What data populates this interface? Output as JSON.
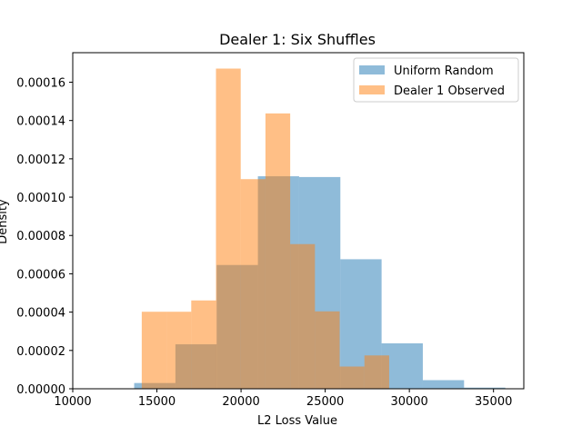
{
  "chart_data": {
    "type": "bar",
    "subtype": "overlaid-histogram",
    "title": "Dealer 1: Six Shuffles",
    "xlabel": "L2 Loss Value",
    "ylabel": "Density",
    "xlim": [
      10000,
      36800
    ],
    "ylim": [
      0,
      0.0001754
    ],
    "x_ticks": [
      10000,
      15000,
      20000,
      25000,
      30000,
      35000
    ],
    "x_tick_labels": [
      "10000",
      "15000",
      "20000",
      "25000",
      "30000",
      "35000"
    ],
    "y_ticks": [
      0,
      2e-05,
      4e-05,
      6e-05,
      8e-05,
      0.0001,
      0.00012,
      0.00014,
      0.00016
    ],
    "y_tick_labels": [
      "0.00000",
      "0.00002",
      "0.00004",
      "0.00006",
      "0.00008",
      "0.00010",
      "0.00012",
      "0.00014",
      "0.00016"
    ],
    "legend_position": "top-right",
    "grid": false,
    "series": [
      {
        "name": "Uniform Random",
        "color": "#1f77b4",
        "alpha": 0.5,
        "bins": [
          {
            "x0": 13650,
            "x1": 16100,
            "value": 3e-06
          },
          {
            "x0": 16100,
            "x1": 18550,
            "value": 2.32e-05
          },
          {
            "x0": 18550,
            "x1": 21000,
            "value": 6.46e-05
          },
          {
            "x0": 21000,
            "x1": 23450,
            "value": 0.0001109
          },
          {
            "x0": 23450,
            "x1": 25900,
            "value": 0.0001105
          },
          {
            "x0": 25900,
            "x1": 28350,
            "value": 6.76e-05
          },
          {
            "x0": 28350,
            "x1": 30800,
            "value": 2.37e-05
          },
          {
            "x0": 30800,
            "x1": 33250,
            "value": 4.5e-06
          },
          {
            "x0": 33250,
            "x1": 35700,
            "value": 6e-07
          }
        ]
      },
      {
        "name": "Dealer 1 Observed",
        "color": "#ff7f0e",
        "alpha": 0.5,
        "bins": [
          {
            "x0": 14100,
            "x1": 15570,
            "value": 4.02e-05
          },
          {
            "x0": 15570,
            "x1": 17040,
            "value": 4.02e-05
          },
          {
            "x0": 17040,
            "x1": 18510,
            "value": 4.61e-05
          },
          {
            "x0": 18510,
            "x1": 19980,
            "value": 0.0001671
          },
          {
            "x0": 19980,
            "x1": 21450,
            "value": 0.0001094
          },
          {
            "x0": 21450,
            "x1": 22920,
            "value": 0.0001437
          },
          {
            "x0": 22920,
            "x1": 24390,
            "value": 7.55e-05
          },
          {
            "x0": 24390,
            "x1": 25860,
            "value": 4.04e-05
          },
          {
            "x0": 25860,
            "x1": 27330,
            "value": 1.16e-05
          },
          {
            "x0": 27330,
            "x1": 28800,
            "value": 1.74e-05
          }
        ]
      }
    ]
  }
}
